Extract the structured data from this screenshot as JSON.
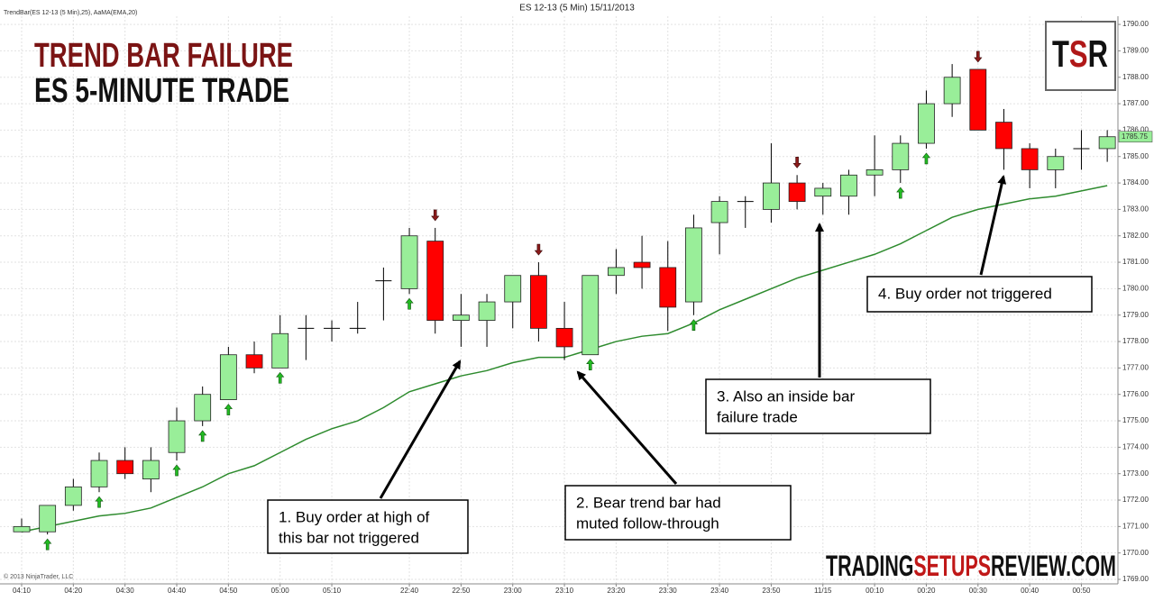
{
  "chart_data": {
    "type": "candlestick",
    "title": "ES 12-13 (5 Min)  15/11/2013",
    "indicator_label": "TrendBar(ES 12-13 (5 Min),25), AaMA(EMA,20)",
    "copyright": "© 2013 NinjaTrader, LLC",
    "headline": "TREND BAR FAILURE",
    "subheadline": "ES 5-MINUTE TRADE",
    "logo": [
      "T",
      "S",
      "R"
    ],
    "website": [
      "TRADING",
      "SETUPS",
      "REVIEW.COM"
    ],
    "categories": [
      "04:10",
      null,
      "04:20",
      null,
      "04:30",
      null,
      "04:40",
      null,
      "04:50",
      null,
      "05:00",
      null,
      "05:10",
      null,
      null,
      "22:40",
      null,
      "22:50",
      null,
      "23:00",
      null,
      "23:10",
      null,
      "23:20",
      null,
      "23:30",
      null,
      "23:40",
      null,
      "23:50",
      null,
      "11/15",
      null,
      "00:10",
      null,
      "00:20",
      null,
      "00:30",
      null,
      "00:40",
      null,
      "00:50",
      null
    ],
    "open": [
      1770.8,
      1770.8,
      1771.8,
      1772.5,
      1773.5,
      1772.8,
      1773.8,
      1775.0,
      1775.8,
      1777.5,
      1777.0,
      1778.5,
      1778.5,
      1778.5,
      1780.3,
      1780.0,
      1781.8,
      1778.8,
      1778.8,
      1779.5,
      1780.5,
      1778.5,
      1777.5,
      1780.5,
      1781.0,
      1780.8,
      1779.5,
      1782.5,
      1783.3,
      1783.0,
      1784.0,
      1783.5,
      1783.5,
      1784.3,
      1784.5,
      1785.5,
      1787.0,
      1788.3,
      1786.3,
      1785.3,
      1784.5,
      1785.3,
      1785.3
    ],
    "high": [
      1771.3,
      1771.8,
      1772.8,
      1773.8,
      1774.0,
      1774.0,
      1775.5,
      1776.3,
      1777.8,
      1778.0,
      1779.0,
      1779.0,
      1778.8,
      1779.5,
      1780.8,
      1782.3,
      1782.3,
      1779.8,
      1779.8,
      1780.5,
      1781.0,
      1779.5,
      1780.5,
      1781.5,
      1782.0,
      1781.8,
      1782.8,
      1783.5,
      1783.5,
      1785.5,
      1784.3,
      1784.0,
      1784.5,
      1785.8,
      1785.8,
      1787.5,
      1788.5,
      1788.3,
      1786.8,
      1785.5,
      1785.3,
      1786.0,
      1786.0
    ],
    "low": [
      1770.8,
      1770.7,
      1771.6,
      1772.3,
      1772.8,
      1772.3,
      1773.5,
      1774.8,
      1775.8,
      1776.8,
      1777.0,
      1777.3,
      1778.0,
      1778.3,
      1778.8,
      1779.8,
      1778.3,
      1777.8,
      1777.8,
      1778.5,
      1778.0,
      1777.3,
      1777.5,
      1779.8,
      1780.0,
      1778.4,
      1779.0,
      1781.3,
      1782.3,
      1782.5,
      1783.0,
      1782.8,
      1782.8,
      1783.5,
      1784.0,
      1785.3,
      1786.5,
      1786.0,
      1784.5,
      1783.8,
      1783.8,
      1784.5,
      1784.8
    ],
    "close": [
      1771.0,
      1771.8,
      1772.5,
      1773.5,
      1773.0,
      1773.5,
      1775.0,
      1776.0,
      1777.5,
      1777.0,
      1778.3,
      1778.5,
      1778.5,
      1778.5,
      1780.3,
      1782.0,
      1778.8,
      1779.0,
      1779.5,
      1780.5,
      1778.5,
      1777.8,
      1780.5,
      1780.8,
      1780.8,
      1779.3,
      1782.3,
      1783.3,
      1783.3,
      1784.0,
      1783.3,
      1783.8,
      1784.3,
      1784.5,
      1785.5,
      1787.0,
      1788.0,
      1786.0,
      1785.3,
      1784.5,
      1785.0,
      1785.3,
      1785.75
    ],
    "last_label": "1785.75",
    "up_color": "#99ee99",
    "down_color": "#ff0000",
    "ema": {
      "color": "#2e8b2e",
      "values": [
        1770.8,
        1771.0,
        1771.2,
        1771.4,
        1771.5,
        1771.7,
        1772.1,
        1772.5,
        1773.0,
        1773.3,
        1773.8,
        1774.3,
        1774.7,
        1775.0,
        1775.5,
        1776.1,
        1776.4,
        1776.7,
        1776.9,
        1777.2,
        1777.4,
        1777.4,
        1777.7,
        1778.0,
        1778.2,
        1778.3,
        1778.7,
        1779.2,
        1779.6,
        1780.0,
        1780.4,
        1780.7,
        1781.0,
        1781.3,
        1781.7,
        1782.2,
        1782.7,
        1783.0,
        1783.2,
        1783.4,
        1783.5,
        1783.7,
        1783.9
      ]
    },
    "buy_arrows": [
      false,
      true,
      false,
      true,
      false,
      false,
      true,
      true,
      true,
      false,
      true,
      false,
      false,
      false,
      false,
      true,
      false,
      false,
      false,
      false,
      false,
      false,
      true,
      false,
      false,
      false,
      true,
      false,
      false,
      false,
      false,
      false,
      false,
      false,
      true,
      true,
      false,
      false,
      false,
      false,
      false,
      false,
      false
    ],
    "sell_arrows": [
      false,
      false,
      false,
      false,
      false,
      false,
      false,
      false,
      false,
      false,
      false,
      false,
      false,
      false,
      false,
      false,
      true,
      false,
      false,
      false,
      true,
      false,
      false,
      false,
      false,
      false,
      false,
      false,
      false,
      false,
      true,
      false,
      false,
      false,
      false,
      false,
      false,
      true,
      false,
      false,
      false,
      false,
      false
    ],
    "buy_arrow_color": "#22bb22",
    "sell_arrow_color": "#8b1a1a",
    "ylim": [
      1768.83,
      1790.31
    ],
    "yticks": [
      {
        "value": 1769,
        "label": "1769.00"
      },
      {
        "value": 1770,
        "label": "1770.00"
      },
      {
        "value": 1771,
        "label": "1771.00"
      },
      {
        "value": 1772,
        "label": "1772.00"
      },
      {
        "value": 1773,
        "label": "1773.00"
      },
      {
        "value": 1774,
        "label": "1774.00"
      },
      {
        "value": 1775,
        "label": "1775.00"
      },
      {
        "value": 1776,
        "label": "1776.00"
      },
      {
        "value": 1777,
        "label": "1777.00"
      },
      {
        "value": 1778,
        "label": "1778.00"
      },
      {
        "value": 1779,
        "label": "1779.00"
      },
      {
        "value": 1780,
        "label": "1780.00"
      },
      {
        "value": 1781,
        "label": "1781.00"
      },
      {
        "value": 1782,
        "label": "1782.00"
      },
      {
        "value": 1783,
        "label": "1783.00"
      },
      {
        "value": 1784,
        "label": "1784.00"
      },
      {
        "value": 1785,
        "label": "1785.00"
      },
      {
        "value": 1786,
        "label": "1786.00"
      },
      {
        "value": 1787,
        "label": "1787.00"
      },
      {
        "value": 1788,
        "label": "1788.00"
      },
      {
        "value": 1789,
        "label": "1789.00"
      },
      {
        "value": 1790,
        "label": "1790.00"
      }
    ],
    "grid": true,
    "annotations": [
      {
        "lines": [
          "1. Buy order at high of",
          "this bar not triggered"
        ]
      },
      {
        "lines": [
          "2. Bear trend bar had",
          "muted follow-through"
        ]
      },
      {
        "lines": [
          "3. Also an inside bar",
          "failure trade"
        ]
      },
      {
        "lines": [
          "4. Buy order not triggered"
        ]
      }
    ]
  }
}
